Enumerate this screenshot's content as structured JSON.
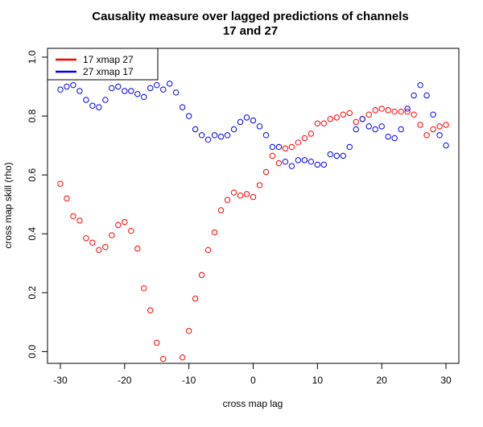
{
  "chart_data": {
    "type": "scatter",
    "title": "Causality measure over lagged predictions of channels",
    "subtitle": "17 and 27",
    "xlabel": "cross map lag",
    "ylabel": "cross map skill (rho)",
    "xlim": [
      -32,
      32
    ],
    "ylim": [
      -0.04,
      1.03
    ],
    "x_ticks": [
      -30,
      -20,
      -10,
      0,
      10,
      20,
      30
    ],
    "x_tick_labels": [
      "-30",
      "-20",
      "-10",
      "0",
      "10",
      "20",
      "30"
    ],
    "y_ticks": [
      0.0,
      0.2,
      0.4,
      0.6,
      0.8,
      1.0
    ],
    "y_tick_labels": [
      "0.0",
      "0.2",
      "0.4",
      "0.6",
      "0.8",
      "1.0"
    ],
    "grid": false,
    "marker": "open-circle",
    "legend_position": "top-left",
    "x": [
      -30,
      -29,
      -28,
      -27,
      -26,
      -25,
      -24,
      -23,
      -22,
      -21,
      -20,
      -19,
      -18,
      -17,
      -16,
      -15,
      -14,
      -13,
      -12,
      -11,
      -10,
      -9,
      -8,
      -7,
      -6,
      -5,
      -4,
      -3,
      -2,
      -1,
      0,
      1,
      2,
      3,
      4,
      5,
      6,
      7,
      8,
      9,
      10,
      11,
      12,
      13,
      14,
      15,
      16,
      17,
      18,
      19,
      20,
      21,
      22,
      23,
      24,
      25,
      26,
      27,
      28,
      29,
      30
    ],
    "series": [
      {
        "name": "17 xmap 27",
        "color": "#ff0000",
        "values": [
          0.57,
          0.52,
          0.46,
          0.445,
          0.385,
          0.37,
          0.345,
          0.355,
          0.395,
          0.43,
          0.44,
          0.41,
          0.35,
          0.215,
          0.14,
          0.03,
          -0.025,
          null,
          null,
          -0.02,
          0.07,
          0.18,
          0.26,
          0.345,
          0.405,
          0.48,
          0.515,
          0.54,
          0.53,
          0.535,
          0.525,
          0.565,
          0.61,
          0.665,
          0.64,
          0.69,
          0.695,
          0.71,
          0.725,
          0.74,
          0.775,
          0.775,
          0.79,
          0.795,
          0.805,
          0.81,
          0.78,
          0.79,
          0.805,
          0.82,
          0.825,
          0.82,
          0.815,
          0.815,
          0.815,
          0.805,
          0.77,
          0.735,
          0.755,
          0.765,
          0.77
        ]
      },
      {
        "name": "27 xmap 17",
        "color": "#0000ff",
        "values": [
          0.89,
          0.9,
          0.905,
          0.885,
          0.855,
          0.835,
          0.83,
          0.855,
          0.895,
          0.9,
          0.885,
          0.885,
          0.875,
          0.865,
          0.895,
          0.905,
          0.89,
          0.91,
          0.88,
          0.83,
          0.8,
          0.755,
          0.735,
          0.72,
          0.735,
          0.73,
          0.735,
          0.755,
          0.78,
          0.795,
          0.785,
          0.765,
          0.735,
          0.695,
          0.695,
          0.645,
          0.63,
          0.65,
          0.65,
          0.645,
          0.635,
          0.635,
          0.67,
          0.665,
          0.665,
          0.695,
          0.755,
          0.79,
          0.765,
          0.755,
          0.765,
          0.73,
          0.725,
          0.755,
          0.825,
          0.87,
          0.905,
          0.87,
          0.805,
          0.735,
          0.7
        ]
      }
    ]
  }
}
